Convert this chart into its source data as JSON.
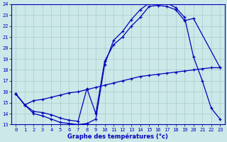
{
  "xlabel": "Graphe des températures (°c)",
  "xlim": [
    -0.5,
    23.5
  ],
  "ylim": [
    13,
    24
  ],
  "xticks": [
    0,
    1,
    2,
    3,
    4,
    5,
    6,
    7,
    8,
    9,
    10,
    11,
    12,
    13,
    14,
    15,
    16,
    17,
    18,
    19,
    20,
    21,
    22,
    23
  ],
  "yticks": [
    13,
    14,
    15,
    16,
    17,
    18,
    19,
    20,
    21,
    22,
    23,
    24
  ],
  "bg_color": "#cce8e8",
  "line_color": "#0000bb",
  "grid_color": "#aacccc",
  "line1_x": [
    0,
    1,
    2,
    3,
    4,
    5,
    6,
    7,
    8,
    9,
    10,
    11,
    12,
    13,
    14,
    15,
    16,
    17,
    18,
    19,
    20,
    21,
    22,
    23
  ],
  "line1_y": [
    15.8,
    14.8,
    15.2,
    15.3,
    15.5,
    15.7,
    15.9,
    16.0,
    16.2,
    16.4,
    16.6,
    16.8,
    17.0,
    17.2,
    17.4,
    17.5,
    17.6,
    17.7,
    17.8,
    17.9,
    18.0,
    18.1,
    18.2,
    18.2
  ],
  "line2_x": [
    0,
    1,
    2,
    3,
    4,
    5,
    6,
    7,
    8,
    9,
    10,
    11,
    12,
    13,
    14,
    15,
    16,
    17,
    18,
    19,
    20,
    21,
    22,
    23
  ],
  "line2_y": [
    15.8,
    14.8,
    14.0,
    13.8,
    13.5,
    13.2,
    13.1,
    13.0,
    13.1,
    13.5,
    18.5,
    20.7,
    21.5,
    22.6,
    23.5,
    24.1,
    24.3,
    24.1,
    23.7,
    22.8,
    19.2,
    17.0,
    14.5,
    13.5
  ],
  "line3_x": [
    0,
    1,
    2,
    3,
    4,
    5,
    6,
    7,
    8,
    9,
    10,
    11,
    12,
    13,
    14,
    15,
    16,
    17,
    18,
    19,
    20,
    23
  ],
  "line3_y": [
    15.8,
    14.8,
    14.2,
    14.1,
    13.9,
    13.6,
    13.4,
    13.3,
    16.3,
    14.0,
    18.8,
    20.3,
    21.0,
    22.0,
    22.8,
    23.8,
    23.9,
    23.8,
    23.5,
    22.5,
    22.7,
    18.2
  ]
}
